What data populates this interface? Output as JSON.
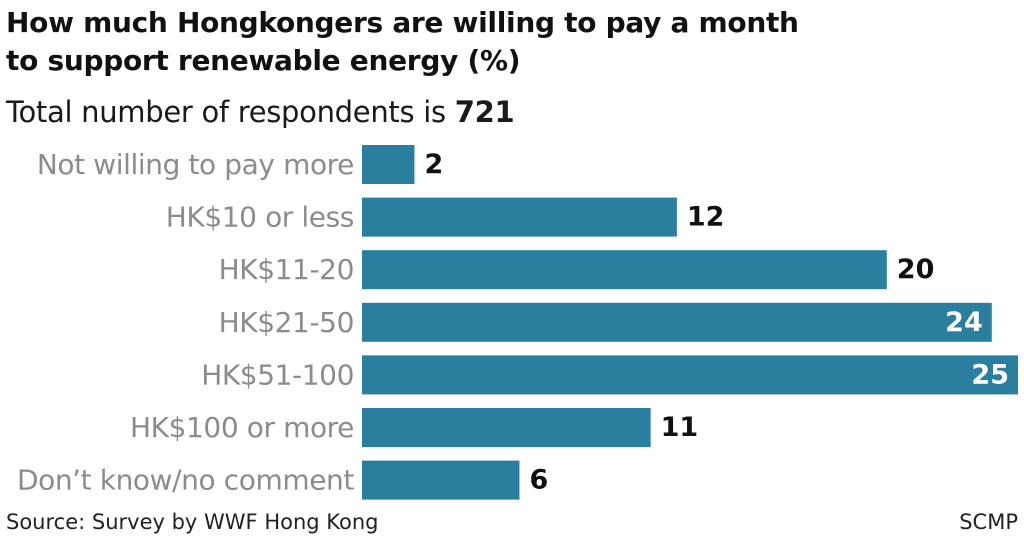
{
  "chart_data": {
    "type": "bar",
    "orientation": "horizontal",
    "title": [
      "How much Hongkongers are willing to pay a month",
      "to support renewable energy  (%)"
    ],
    "subtitle_prefix": "Total number of respondents is ",
    "subtitle_value": "721",
    "categories": [
      "Not willing to pay more",
      "HK$10 or less",
      "HK$11-20",
      "HK$21-50",
      "HK$51-100",
      "HK$100 or more",
      "Don’t know/no comment"
    ],
    "values": [
      2,
      12,
      20,
      24,
      25,
      11,
      6
    ],
    "xlim": [
      0,
      25
    ],
    "grid": false,
    "bar_color": "#2a7f9e",
    "label_color": "#8c8c8c",
    "value_color": "#111111",
    "value_color_inside": "#ffffff"
  },
  "footer": {
    "source": "Source: Survey by WWF Hong Kong",
    "credit": "SCMP"
  }
}
